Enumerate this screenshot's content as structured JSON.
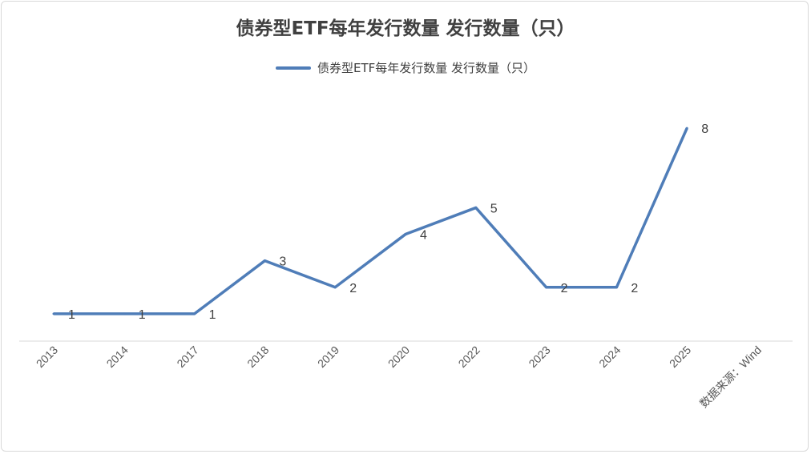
{
  "chart_data": {
    "type": "line",
    "title": "债券型ETF每年发行数量 发行数量（只）",
    "categories": [
      "2013",
      "2014",
      "2017",
      "2018",
      "2019",
      "2020",
      "2022",
      "2023",
      "2024",
      "2025",
      "数据来源：Wind"
    ],
    "series": [
      {
        "name": "债券型ETF每年发行数量 发行数量（只）",
        "values": [
          1,
          1,
          1,
          3,
          2,
          4,
          5,
          2,
          2,
          8,
          null
        ],
        "color": "#4f7db8"
      }
    ],
    "data_labels": true,
    "ylim": [
      0,
      9
    ],
    "grid": false,
    "legend_position": "top"
  }
}
